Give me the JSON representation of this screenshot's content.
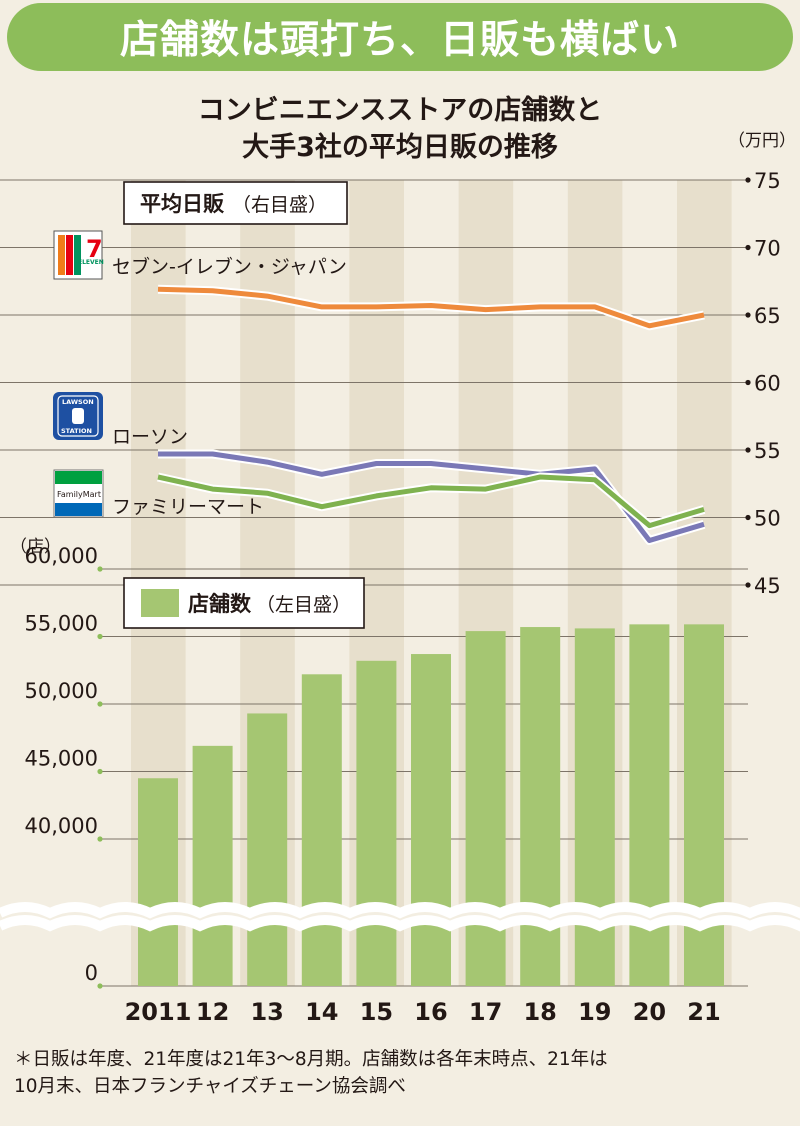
{
  "header": {
    "banner": "店舗数は頭打ち、日販も横ばい",
    "subtitle_line1": "コンビニエンスストアの店舗数と",
    "subtitle_line2": "大手3社の平均日販の推移"
  },
  "units": {
    "right_unit": "（万円）",
    "left_unit": "（店）"
  },
  "legend": {
    "avg_daily_sales": "平均日販",
    "avg_daily_sales_note": "（右目盛）",
    "store_count": "店舗数",
    "store_count_note": "（左目盛）"
  },
  "brands": {
    "seven": "セブン-イレブン・ジャパン",
    "lawson": "ローソン",
    "familymart": "ファミリーマート",
    "seven_logo_text": "ELEVEN",
    "lawson_logo_top": "LAWSON",
    "lawson_logo_bottom": "STATION",
    "familymart_logo_text": "FamilyMart"
  },
  "colors": {
    "banner": "#8dbd5a",
    "bars": "#a5c672",
    "stripe": "#e7dfcc",
    "seven_line": "#ee8a3c",
    "lawson_line": "#7a78b6",
    "familymart_line": "#7fb24f"
  },
  "chart_data": [
    {
      "type": "line",
      "title": "平均日販（右目盛）",
      "categories": [
        "2011",
        "12",
        "13",
        "14",
        "15",
        "16",
        "17",
        "18",
        "19",
        "20",
        "21"
      ],
      "ylim": [
        45,
        75
      ],
      "y_ticks": [
        "45",
        "50",
        "55",
        "60",
        "65",
        "70",
        "75"
      ],
      "series": [
        {
          "name": "セブン-イレブン・ジャパン",
          "values": [
            66.9,
            66.8,
            66.4,
            65.6,
            65.6,
            65.7,
            65.4,
            65.6,
            65.6,
            64.2,
            65.0
          ]
        },
        {
          "name": "ローソン",
          "values": [
            54.7,
            54.7,
            54.1,
            53.2,
            54.0,
            54.0,
            53.6,
            53.2,
            53.6,
            48.3,
            49.5
          ]
        },
        {
          "name": "ファミリーマート",
          "values": [
            53.0,
            52.1,
            51.8,
            50.8,
            51.6,
            52.2,
            52.1,
            53.0,
            52.8,
            49.4,
            50.6
          ]
        }
      ]
    },
    {
      "type": "bar",
      "title": "店舗数（左目盛）",
      "categories": [
        "2011",
        "12",
        "13",
        "14",
        "15",
        "16",
        "17",
        "18",
        "19",
        "20",
        "21"
      ],
      "ylim": [
        0,
        60000
      ],
      "axis_break": [
        0,
        40000
      ],
      "y_ticks": [
        "0",
        "40,000",
        "45,000",
        "50,000",
        "55,000",
        "60,000"
      ],
      "values": [
        44500,
        46900,
        49300,
        52200,
        53200,
        53700,
        55400,
        55700,
        55600,
        55900,
        55900
      ]
    }
  ],
  "footnote": {
    "line1": "＊日販は年度、21年度は21年3～8月期。店舗数は各年末時点、21年は",
    "line2": "10月末、日本フランチャイズチェーン協会調べ"
  }
}
